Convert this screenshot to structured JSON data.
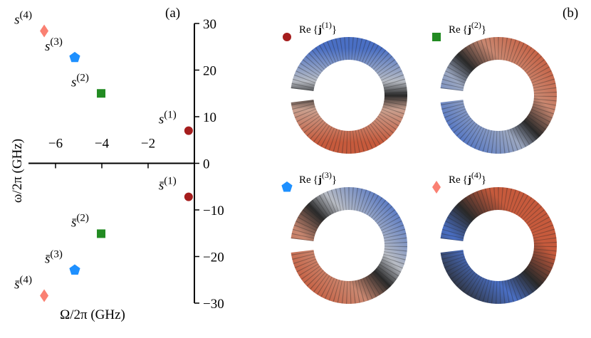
{
  "chart_data": {
    "type": "scatter",
    "title": "(a)",
    "xlabel": "Ω/2π  (GHz)",
    "ylabel": "ω/2π  (GHz)",
    "xlim": [
      -8,
      0
    ],
    "ylim": [
      -30,
      30
    ],
    "xticks": [
      {
        "value": -6,
        "label": "−6"
      },
      {
        "value": -4,
        "label": "−4"
      },
      {
        "value": -2,
        "label": "−2"
      }
    ],
    "yticks": [
      30,
      20,
      10,
      0,
      {
        "value": -10,
        "label": "−10"
      },
      {
        "value": -20,
        "label": "−20"
      },
      {
        "value": -30,
        "label": "−30"
      }
    ],
    "series": [
      {
        "color": "#a51d1d",
        "marker": "circle",
        "x": [
          -0.25,
          -0.25
        ],
        "values": [
          7.0,
          -7.2
        ],
        "labels": [
          {
            "base": "s",
            "sup": "(1)"
          },
          {
            "base": "s̄",
            "sup": "(1)"
          }
        ]
      },
      {
        "color": "#228b22",
        "marker": "square",
        "x": [
          -4.03,
          -4.03
        ],
        "values": [
          15.0,
          -15.1
        ],
        "labels": [
          {
            "base": "s",
            "sup": "(2)"
          },
          {
            "base": "s̄",
            "sup": "(2)"
          }
        ]
      },
      {
        "color": "#1e90ff",
        "marker": "pentagon",
        "x": [
          -5.17,
          -5.17
        ],
        "values": [
          22.7,
          -22.9
        ],
        "labels": [
          {
            "base": "s",
            "sup": "(3)"
          },
          {
            "base": "s̄",
            "sup": "(3)"
          }
        ]
      },
      {
        "color": "#fa8072",
        "marker": "diamond",
        "x": [
          -6.49,
          -6.49
        ],
        "values": [
          28.4,
          -28.4
        ],
        "labels": [
          {
            "base": "s",
            "sup": "(4)"
          },
          {
            "base": "s̄",
            "sup": "(4)"
          }
        ]
      }
    ]
  },
  "panel_b": {
    "title": "(b)",
    "modes": [
      {
        "prefix": "Re",
        "vector": "j",
        "sup": "(1)"
      },
      {
        "prefix": "Re",
        "vector": "j",
        "sup": "(2)"
      },
      {
        "prefix": "Re",
        "vector": "j",
        "sup": "(3)"
      },
      {
        "prefix": "Re",
        "vector": "j",
        "sup": "(4)"
      }
    ]
  }
}
